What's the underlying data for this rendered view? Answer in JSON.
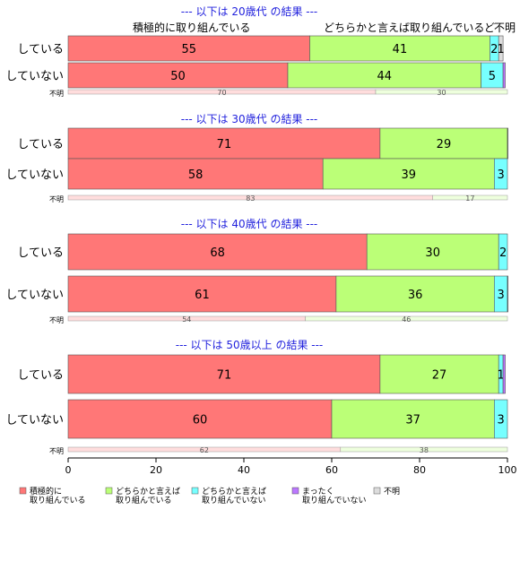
{
  "chart_data": {
    "type": "bar",
    "orientation": "horizontal",
    "stacked": "percent",
    "xlim": [
      0,
      100
    ],
    "x_ticks": [
      "0",
      "20",
      "40",
      "60",
      "80",
      "100"
    ],
    "category_names": [
      "積極的に取り組んでいる",
      "どちらかと言えば取り組んでいる",
      "どちらかと言えば取り組んでいない",
      "まったく取り組んでいない",
      "不明"
    ],
    "colors": [
      "#ff7777",
      "#bbff77",
      "#77ffff",
      "#bb77ff",
      "#dddddd"
    ],
    "legend": {
      "placement": "bottom-left",
      "items": [
        {
          "line1": "積極的に",
          "line2": "取り組んでいる",
          "color": "#ff7777"
        },
        {
          "line1": "どちらかと言えば",
          "line2": "取り組んでいる",
          "color": "#bbff77"
        },
        {
          "line1": "どちらかと言えば",
          "line2": "取り組んでいない",
          "color": "#77ffff"
        },
        {
          "line1": "まったく",
          "line2": "取り組んでいない",
          "color": "#bb77ff"
        },
        {
          "line1": "不明",
          "line2": "",
          "color": "#dddddd"
        }
      ]
    },
    "top_header_labels": {
      "active": "積極的に取り組んでいる",
      "somewhat": "どちらかと言えば取り組んでいる",
      "notsomewhat": "ど",
      "unknown": "不明"
    },
    "groups": [
      {
        "title": "--- 以下は 20歳代 の結果 ---",
        "rows": [
          {
            "label": "している",
            "values": [
              55,
              41,
              2,
              0,
              1
            ]
          },
          {
            "label": "していない",
            "values": [
              50,
              44,
              5,
              0.5,
              0
            ]
          }
        ],
        "unknown_row": {
          "label": "不明",
          "values": [
            70,
            30
          ]
        }
      },
      {
        "title": "--- 以下は 30歳代 の結果 ---",
        "rows": [
          {
            "label": "している",
            "values": [
              71,
              29,
              0,
              0.3,
              0
            ]
          },
          {
            "label": "していない",
            "values": [
              58,
              39,
              3,
              0,
              0
            ]
          }
        ],
        "unknown_row": {
          "label": "不明",
          "values": [
            83,
            17
          ]
        }
      },
      {
        "title": "--- 以下は 40歳代 の結果 ---",
        "rows": [
          {
            "label": "している",
            "values": [
              68,
              30,
              2,
              0,
              0
            ]
          },
          {
            "label": "していない",
            "values": [
              61,
              36,
              3,
              0.5,
              0
            ]
          }
        ],
        "unknown_row": {
          "label": "不明",
          "values": [
            54,
            46
          ]
        }
      },
      {
        "title": "--- 以下は 50歳以上 の結果 ---",
        "rows": [
          {
            "label": "している",
            "values": [
              71,
              27,
              1,
              0.5,
              0
            ]
          },
          {
            "label": "していない",
            "values": [
              60,
              37,
              3,
              0,
              0
            ]
          }
        ],
        "unknown_row": {
          "label": "不明",
          "values": [
            62,
            38
          ]
        }
      }
    ]
  }
}
